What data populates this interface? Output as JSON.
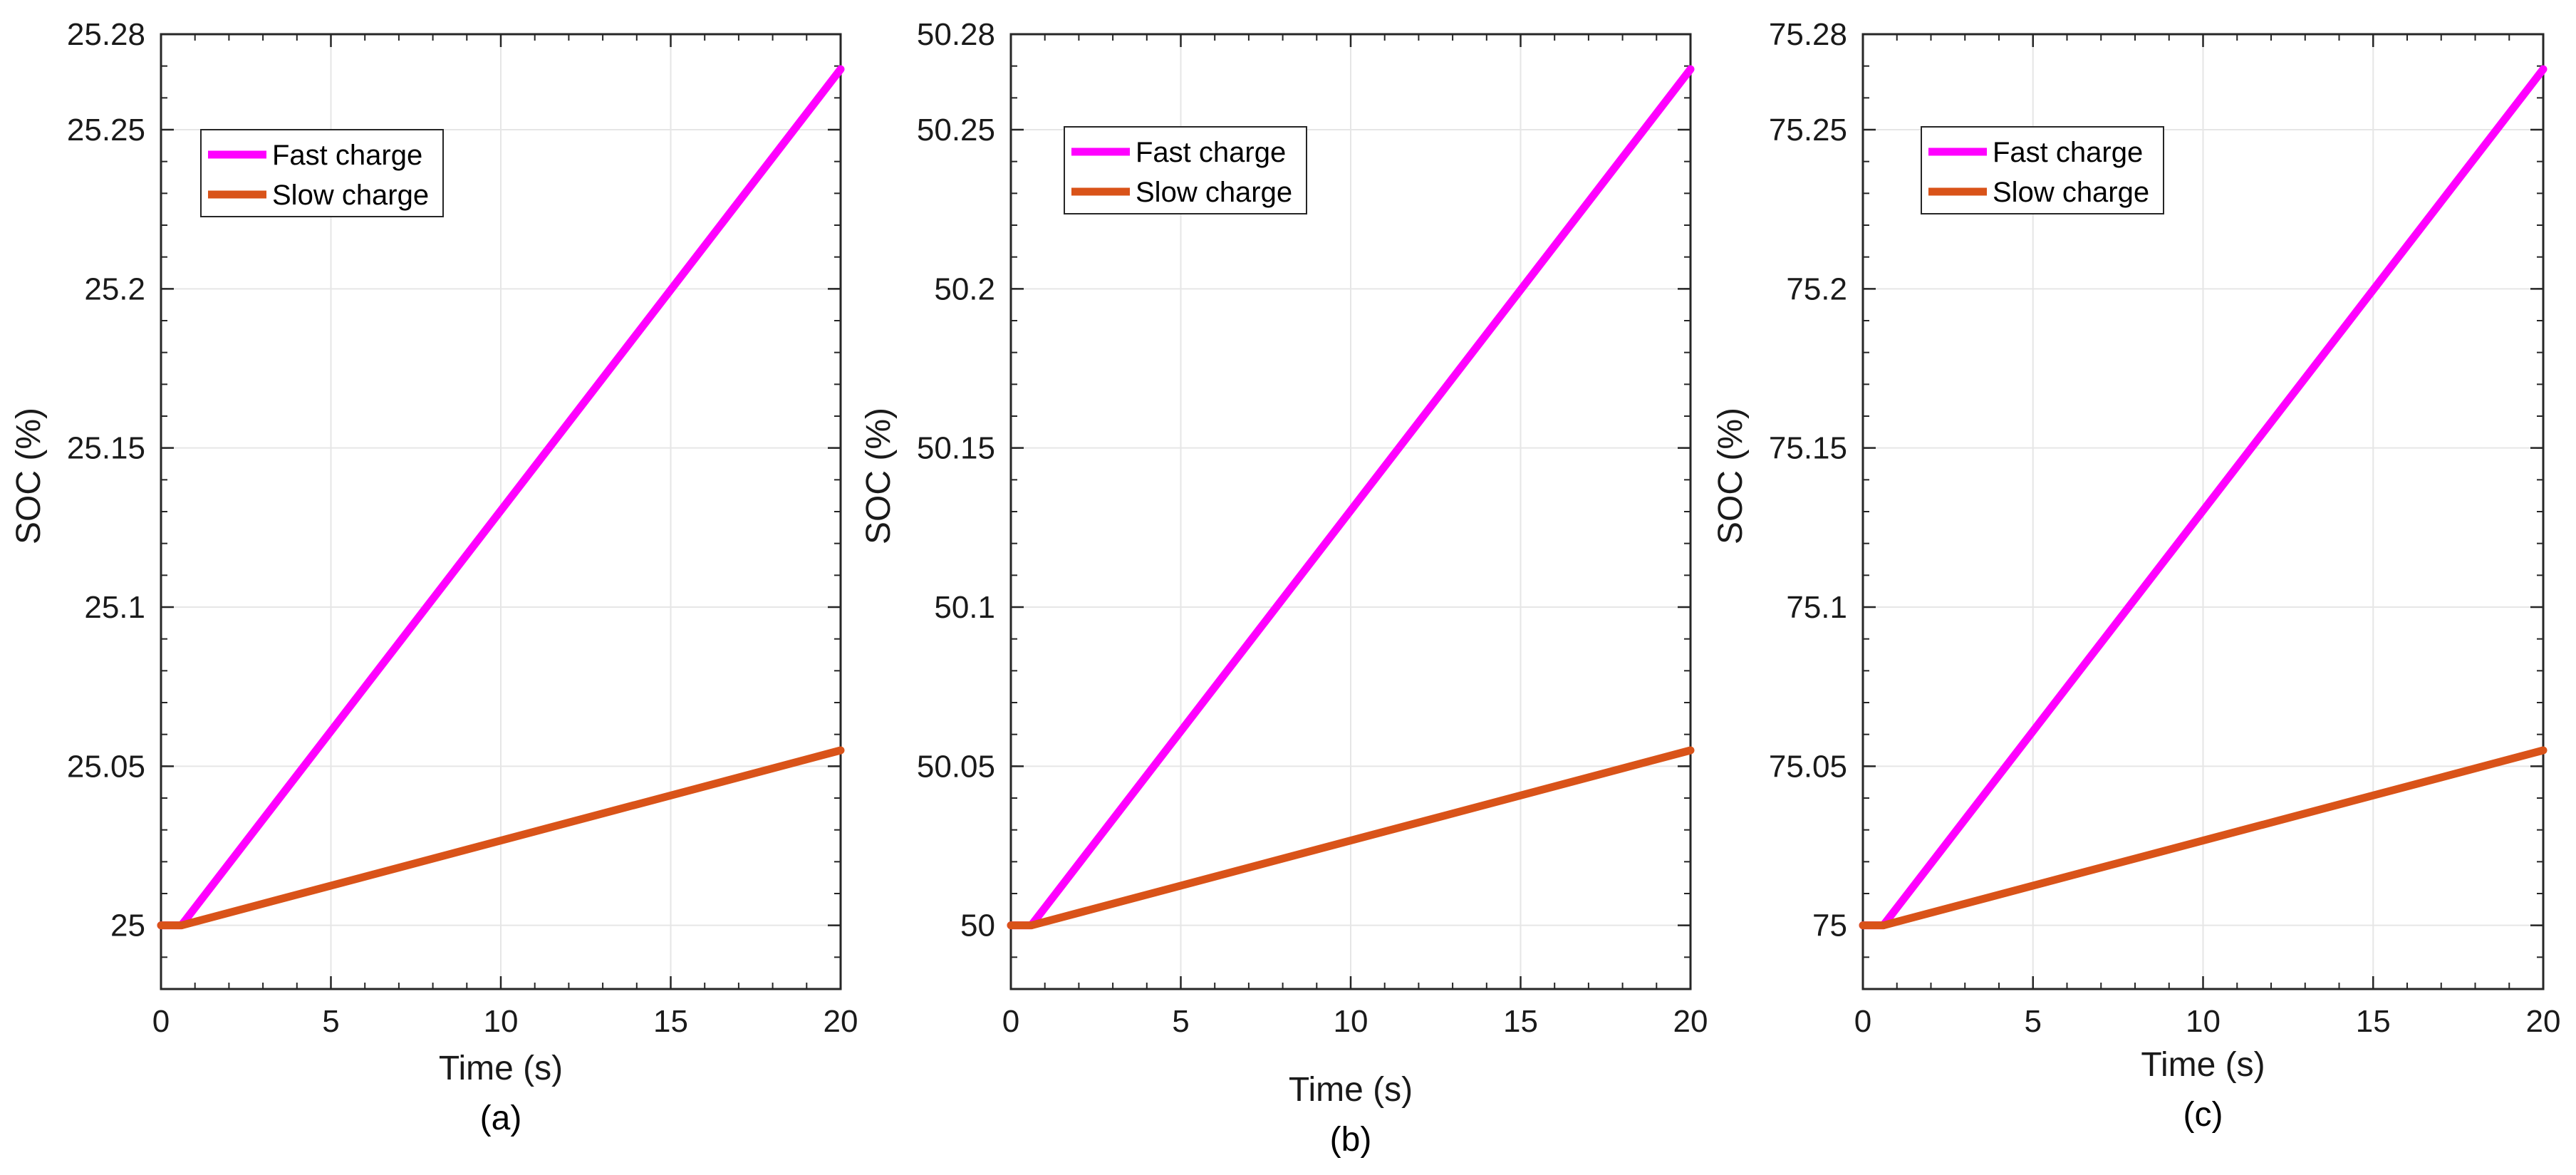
{
  "chart_data": [
    {
      "type": "line",
      "caption": "(a)",
      "xlabel": "Time (s)",
      "ylabel": "SOC (%)",
      "xlim": [
        0,
        20
      ],
      "ylim": [
        24.98,
        25.28
      ],
      "xticks": [
        0,
        5,
        10,
        15,
        20
      ],
      "xtick_labels": [
        "0",
        "5",
        "10",
        "15",
        "20"
      ],
      "yticks": [
        25,
        25.05,
        25.1,
        25.15,
        25.2,
        25.25,
        25.28
      ],
      "ytick_labels": [
        "25",
        "25.05",
        "25.1",
        "25.15",
        "25.2",
        "25.25",
        "25.28"
      ],
      "grid": true,
      "legend_position": "top-left",
      "series": [
        {
          "name": "Fast charge",
          "color": "#FF00FF",
          "x": [
            0,
            0.6,
            20
          ],
          "y": [
            25,
            25,
            25.269
          ]
        },
        {
          "name": "Slow charge",
          "color": "#D95319",
          "x": [
            0,
            0.6,
            20
          ],
          "y": [
            25,
            25,
            25.055
          ]
        }
      ]
    },
    {
      "type": "line",
      "caption": "(b)",
      "xlabel": "Time (s)",
      "ylabel": "SOC (%)",
      "xlim": [
        0,
        20
      ],
      "ylim": [
        49.98,
        50.28
      ],
      "xticks": [
        0,
        5,
        10,
        15,
        20
      ],
      "xtick_labels": [
        "0",
        "5",
        "10",
        "15",
        "20"
      ],
      "yticks": [
        50,
        50.05,
        50.1,
        50.15,
        50.2,
        50.25,
        50.28
      ],
      "ytick_labels": [
        "50",
        "50.05",
        "50.1",
        "50.15",
        "50.2",
        "50.25",
        "50.28"
      ],
      "grid": true,
      "legend_position": "top-left",
      "series": [
        {
          "name": "Fast charge",
          "color": "#FF00FF",
          "x": [
            0,
            0.6,
            20
          ],
          "y": [
            50,
            50,
            50.269
          ]
        },
        {
          "name": "Slow charge",
          "color": "#D95319",
          "x": [
            0,
            0.6,
            20
          ],
          "y": [
            50,
            50,
            50.055
          ]
        }
      ]
    },
    {
      "type": "line",
      "caption": "(c)",
      "xlabel": "Time (s)",
      "ylabel": "SOC (%)",
      "xlim": [
        0,
        20
      ],
      "ylim": [
        74.98,
        75.28
      ],
      "xticks": [
        0,
        5,
        10,
        15,
        20
      ],
      "xtick_labels": [
        "0",
        "5",
        "10",
        "15",
        "20"
      ],
      "yticks": [
        75,
        75.05,
        75.1,
        75.15,
        75.2,
        75.25,
        75.28
      ],
      "ytick_labels": [
        "75",
        "75.05",
        "75.1",
        "75.15",
        "75.2",
        "75.25",
        "75.28"
      ],
      "grid": true,
      "legend_position": "top-left",
      "series": [
        {
          "name": "Fast charge",
          "color": "#FF00FF",
          "x": [
            0,
            0.6,
            20
          ],
          "y": [
            75,
            75,
            75.269
          ]
        },
        {
          "name": "Slow charge",
          "color": "#D95319",
          "x": [
            0,
            0.6,
            20
          ],
          "y": [
            75,
            75,
            75.055
          ]
        }
      ]
    }
  ]
}
